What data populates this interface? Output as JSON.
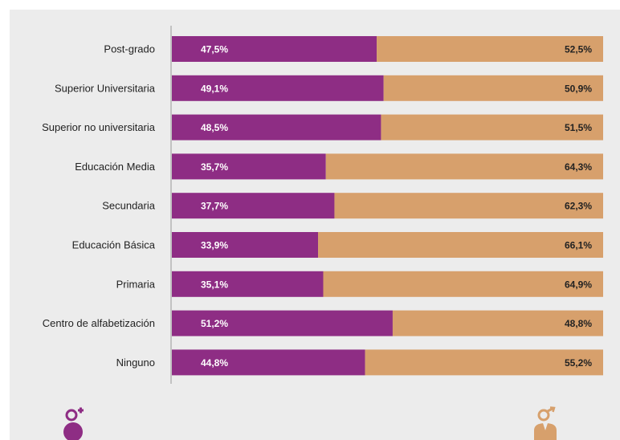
{
  "chart_data": {
    "type": "bar",
    "stacked": true,
    "orientation": "horizontal",
    "title": "",
    "xlabel": "",
    "ylabel": "",
    "xlim": [
      0,
      100
    ],
    "grid": false,
    "categories": [
      "Post-grado",
      "Superior Universitaria",
      "Superior no universitaria",
      "Educación  Media",
      "Secundaria",
      "Educación Básica",
      "Primaria",
      "Centro de alfabetización",
      "Ninguno"
    ],
    "series": [
      {
        "color": "#8e2d84",
        "values": [
          47.5,
          49.1,
          48.5,
          35.7,
          37.7,
          33.9,
          35.1,
          51.2,
          44.8
        ],
        "labels": [
          "47,5%",
          "49,1%",
          "48,5%",
          "35,7%",
          "37,7%",
          "33,9%",
          "35,1%",
          "51,2%",
          "44,8%"
        ]
      },
      {
        "color": "#d7a06c",
        "values": [
          52.5,
          50.9,
          51.5,
          64.3,
          62.3,
          66.1,
          64.9,
          48.8,
          55.2
        ],
        "labels": [
          "52,5%",
          "50,9%",
          "51,5%",
          "64,3%",
          "62,3%",
          "66,1%",
          "64,9%",
          "48,8%",
          "55,2%"
        ]
      }
    ]
  },
  "legend_icons": {
    "female": {
      "icon": "female-symbol-icon",
      "color": "#8e2d84"
    },
    "male": {
      "icon": "male-symbol-icon",
      "color": "#d7a06c"
    }
  }
}
